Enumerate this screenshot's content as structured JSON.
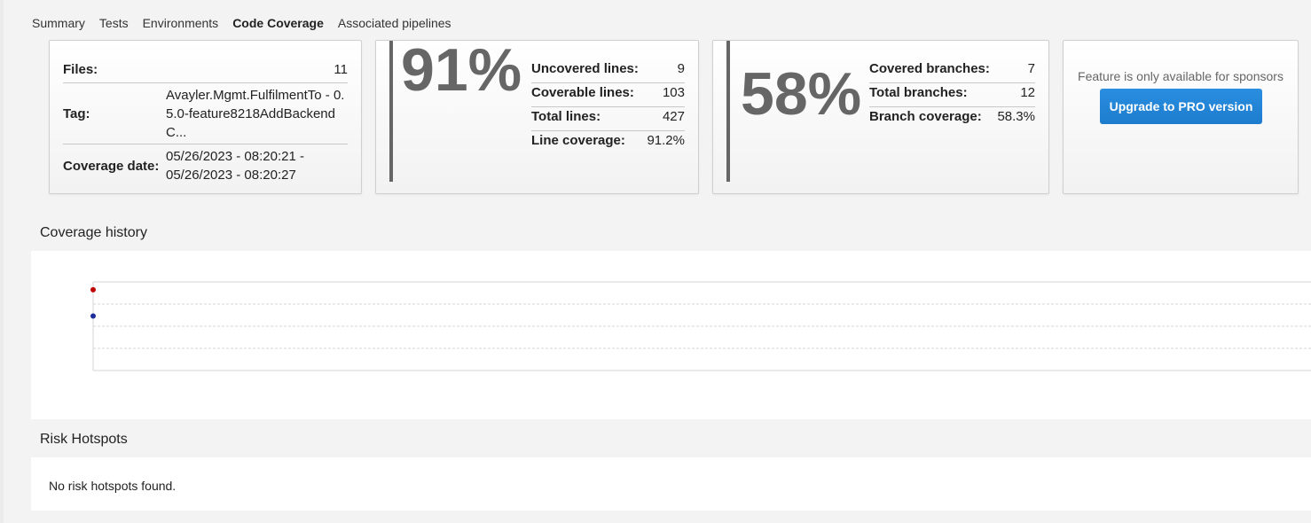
{
  "tabs": [
    {
      "label": "Summary",
      "active": false
    },
    {
      "label": "Tests",
      "active": false
    },
    {
      "label": "Environments",
      "active": false
    },
    {
      "label": "Code Coverage",
      "active": true
    },
    {
      "label": "Associated pipelines",
      "active": false
    }
  ],
  "info_card": {
    "files_label": "Files:",
    "files_value": "11",
    "tag_label": "Tag:",
    "tag_value": "Avayler.Mgmt.FulfilmentTo - 0.5.0-feature8218AddBackendC...",
    "date_label": "Coverage date:",
    "date_value": "05/26/2023 - 08:20:21 - 05/26/2023 - 08:20:27"
  },
  "line_card": {
    "big_value": "91%",
    "rows": [
      {
        "label": "Uncovered lines:",
        "value": "9"
      },
      {
        "label": "Coverable lines:",
        "value": "103"
      },
      {
        "label": "Total lines:",
        "value": "427"
      },
      {
        "label": "Line coverage:",
        "value": "91.2%"
      }
    ]
  },
  "branch_card": {
    "big_value": "58%",
    "rows": [
      {
        "label": "Covered branches:",
        "value": "7"
      },
      {
        "label": "Total branches:",
        "value": "12"
      },
      {
        "label": "Branch coverage:",
        "value": "58.3%"
      }
    ]
  },
  "sponsor_card": {
    "text": "Feature is only available for sponsors",
    "button": "Upgrade to PRO version",
    "button_color": "#1e7fd0"
  },
  "coverage_history": {
    "title": "Coverage history",
    "chart_data": {
      "type": "line",
      "series": [
        {
          "color": "#c00000",
          "values": [
            91.2
          ]
        },
        {
          "color": "#1f2d9c",
          "values": [
            58.3
          ]
        }
      ],
      "grid": true
    }
  },
  "risk_hotspots": {
    "title": "Risk Hotspots",
    "empty_text": "No risk hotspots found."
  }
}
